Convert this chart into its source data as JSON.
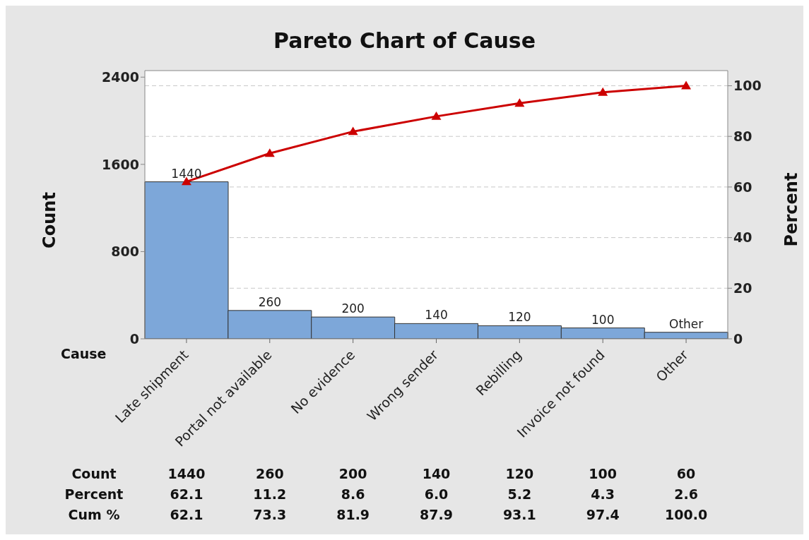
{
  "chart_data": {
    "type": "bar",
    "title": "Pareto Chart of Cause",
    "xlabel": "Cause",
    "ylabel": "Count",
    "y2label": "Percent",
    "categories": [
      "Late shipment",
      "Portal not available",
      "No evidence",
      "Wrong sender",
      "Rebilling",
      "Invoice not found",
      "Other"
    ],
    "series": [
      {
        "color": "#7da7d9",
        "values": [
          1440,
          260,
          200,
          140,
          120,
          100,
          60
        ],
        "value_labels": [
          "1440",
          "260",
          "200",
          "140",
          "120",
          "100",
          "Other"
        ]
      },
      {
        "type": "line",
        "axis": "y2",
        "color": "#cc0000",
        "values": [
          62.1,
          73.3,
          81.9,
          87.9,
          93.1,
          97.4,
          100.0
        ]
      }
    ],
    "ylim": [
      0,
      2460
    ],
    "yticks": [
      0,
      800,
      1600,
      2400
    ],
    "y2lim": [
      0,
      106
    ],
    "y2ticks": [
      0,
      20,
      40,
      60,
      80,
      100
    ],
    "grid": "y",
    "marker": "triangle",
    "line_style": "solid",
    "annotations": [
      "Count",
      "1440",
      "260",
      "200",
      "140",
      "120",
      "100",
      "60",
      "Percent",
      "62.1",
      "11.2",
      "8.6",
      "6.0",
      "5.2",
      "4.3",
      "2.6",
      "Cum %",
      "62.1",
      "73.3",
      "81.9",
      "87.9",
      "93.1",
      "97.4",
      "100.0"
    ]
  }
}
